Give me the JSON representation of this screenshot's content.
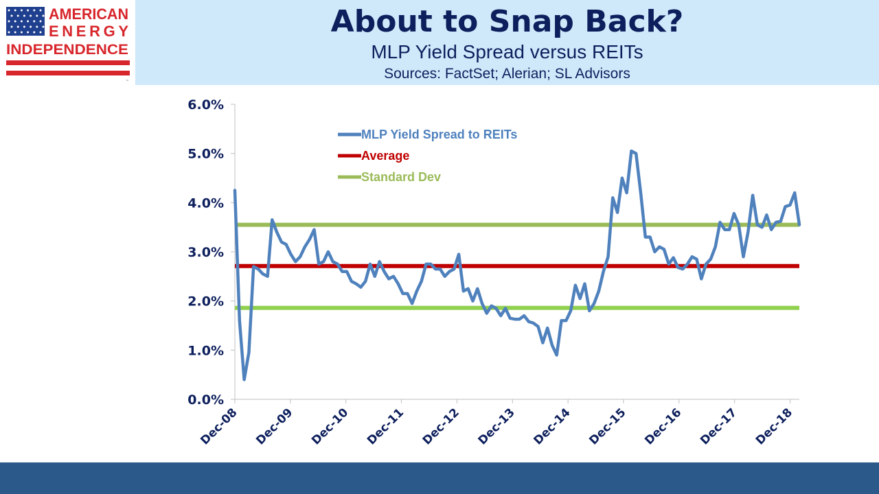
{
  "header": {
    "title": "About to Snap Back?",
    "subtitle": "MLP Yield Spread versus REITs",
    "sources": "Sources: FactSet; Alerian; SL Advisors"
  },
  "logo": {
    "line1": "AMERICAN",
    "line2": "ENERGY",
    "line3": "INDEPENDENCE",
    "tm": "™"
  },
  "colors": {
    "header_bg": "#cfe9fb",
    "title": "#0d1f5c",
    "spread_line": "#4f81bd",
    "average_line": "#c00000",
    "std_line_upper": "#9bbb59",
    "std_line_lower": "#92d050",
    "footer": "#2b5a8a",
    "logo_red": "#d7262c",
    "logo_blue": "#1f3f8f"
  },
  "chart_data": {
    "type": "line",
    "title": "",
    "xlabel": "",
    "ylabel": "",
    "ylim": [
      0,
      0.06
    ],
    "y_ticks": [
      "0.0%",
      "1.0%",
      "2.0%",
      "3.0%",
      "4.0%",
      "5.0%",
      "6.0%"
    ],
    "x_ticks": [
      "Dec-08",
      "Dec-09",
      "Dec-10",
      "Dec-11",
      "Dec-12",
      "Dec-13",
      "Dec-14",
      "Dec-15",
      "Dec-16",
      "Dec-17",
      "Dec-18"
    ],
    "x_range": [
      0,
      122
    ],
    "legend": [
      {
        "label": "MLP Yield Spread to REITs",
        "color": "#4f81bd"
      },
      {
        "label": "Average",
        "color": "#c00000"
      },
      {
        "label": "Standard Dev",
        "color": "#9bbb59"
      }
    ],
    "series": [
      {
        "name": "MLP Yield Spread to REITs",
        "color": "#4f81bd",
        "values": [
          0.0425,
          0.016,
          0.004,
          0.0095,
          0.027,
          0.0265,
          0.0255,
          0.025,
          0.0365,
          0.034,
          0.032,
          0.0315,
          0.0295,
          0.028,
          0.029,
          0.031,
          0.0325,
          0.0345,
          0.0275,
          0.028,
          0.03,
          0.028,
          0.0275,
          0.026,
          0.026,
          0.024,
          0.0235,
          0.0228,
          0.024,
          0.0275,
          0.025,
          0.028,
          0.026,
          0.0245,
          0.025,
          0.0235,
          0.0215,
          0.0215,
          0.0195,
          0.022,
          0.024,
          0.0275,
          0.0275,
          0.0265,
          0.0265,
          0.025,
          0.026,
          0.0265,
          0.0295,
          0.022,
          0.0225,
          0.02,
          0.0225,
          0.0195,
          0.0175,
          0.019,
          0.0185,
          0.017,
          0.0185,
          0.0165,
          0.0163,
          0.0163,
          0.017,
          0.0158,
          0.0155,
          0.0148,
          0.0115,
          0.0145,
          0.011,
          0.009,
          0.016,
          0.016,
          0.018,
          0.0232,
          0.0205,
          0.0235,
          0.018,
          0.0195,
          0.022,
          0.026,
          0.029,
          0.041,
          0.038,
          0.045,
          0.042,
          0.0505,
          0.05,
          0.042,
          0.033,
          0.033,
          0.03,
          0.031,
          0.0305,
          0.0275,
          0.0288,
          0.0268,
          0.0265,
          0.0275,
          0.029,
          0.0285,
          0.0245,
          0.0275,
          0.0285,
          0.031,
          0.036,
          0.0345,
          0.0345,
          0.0378,
          0.0355,
          0.029,
          0.034,
          0.0415,
          0.0355,
          0.035,
          0.0375,
          0.0345,
          0.036,
          0.0362,
          0.0392,
          0.0395,
          0.042,
          0.0355
        ]
      },
      {
        "name": "Average",
        "color": "#c00000",
        "values": [
          0.0271,
          0.0271
        ]
      },
      {
        "name": "Standard Dev (upper)",
        "color": "#9bbb59",
        "values": [
          0.0355,
          0.0355
        ]
      },
      {
        "name": "Standard Dev (lower)",
        "color": "#92d050",
        "values": [
          0.0186,
          0.0186
        ]
      }
    ]
  }
}
